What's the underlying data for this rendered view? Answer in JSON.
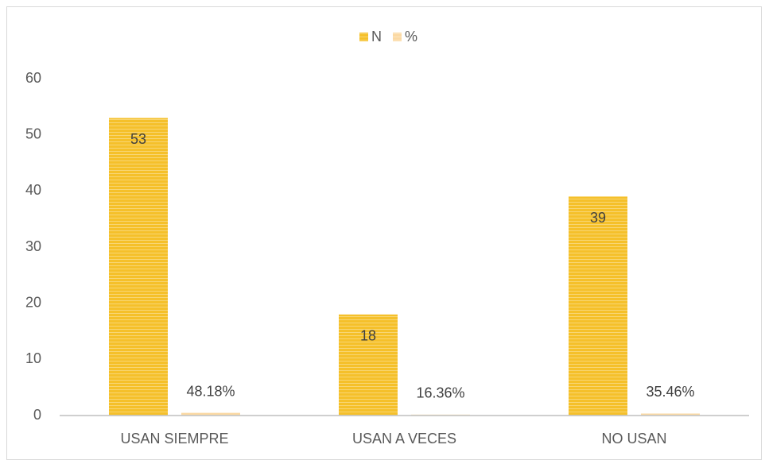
{
  "chart_data": {
    "type": "bar",
    "categories": [
      "USAN SIEMPRE",
      "USAN A VECES",
      "NO USAN"
    ],
    "series": [
      {
        "name": "N",
        "color": "#f5c02a",
        "values": [
          53,
          18,
          39
        ]
      },
      {
        "name": "%",
        "color": "#fbd9a3",
        "values": [
          0.4818,
          0.1636,
          0.3546
        ],
        "value_labels": [
          "48.18%",
          "16.36%",
          "35.46%"
        ]
      }
    ],
    "ylim": [
      0,
      60
    ],
    "yticks": [
      0,
      10,
      20,
      30,
      40,
      50,
      60
    ],
    "grid": false,
    "legend": "top"
  }
}
